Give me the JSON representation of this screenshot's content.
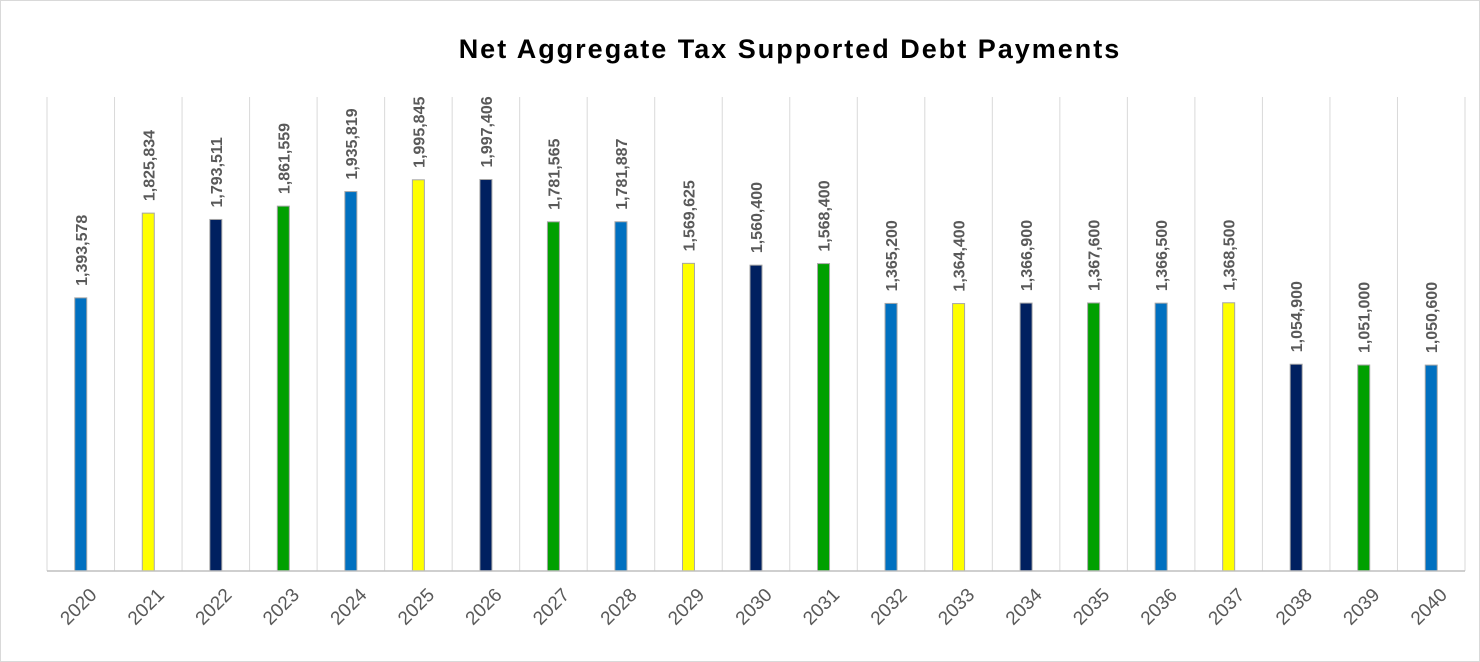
{
  "chart_data": {
    "type": "bar",
    "title": "Net Aggregate Tax Supported Debt Payments",
    "xlabel": "",
    "ylabel": "",
    "categories": [
      "2020",
      "2021",
      "2022",
      "2023",
      "2024",
      "2025",
      "2026",
      "2027",
      "2028",
      "2029",
      "2030",
      "2031",
      "2032",
      "2033",
      "2034",
      "2035",
      "2036",
      "2037",
      "2038",
      "2039",
      "2040"
    ],
    "values": [
      1393578,
      1825834,
      1793511,
      1861559,
      1935819,
      1995845,
      1997406,
      1781565,
      1781887,
      1569625,
      1560400,
      1568400,
      1365200,
      1364400,
      1366900,
      1367600,
      1366500,
      1368500,
      1054900,
      1051000,
      1050600
    ],
    "data_labels": [
      "1,393,578",
      "1,825,834",
      "1,793,511",
      "1,861,559",
      "1,935,819",
      "1,995,845",
      "1,997,406",
      "1,781,565",
      "1,781,887",
      "1,569,625",
      "1,560,400",
      "1,568,400",
      "1,365,200",
      "1,364,400",
      "1,366,900",
      "1,367,600",
      "1,366,500",
      "1,368,500",
      "1,054,900",
      "1,051,000",
      "1,050,600"
    ],
    "bar_colors": [
      "#0070C0",
      "#FFFF00",
      "#002060",
      "#00A000",
      "#0070C0",
      "#FFFF00",
      "#002060",
      "#00A000",
      "#0070C0",
      "#FFFF00",
      "#002060",
      "#00A000",
      "#0070C0",
      "#FFFF00",
      "#002060",
      "#00A000",
      "#0070C0",
      "#FFFF00",
      "#002060",
      "#00A000",
      "#0070C0"
    ],
    "ylim": [
      0,
      2500000
    ],
    "grid": "vertical",
    "legend": "none"
  }
}
